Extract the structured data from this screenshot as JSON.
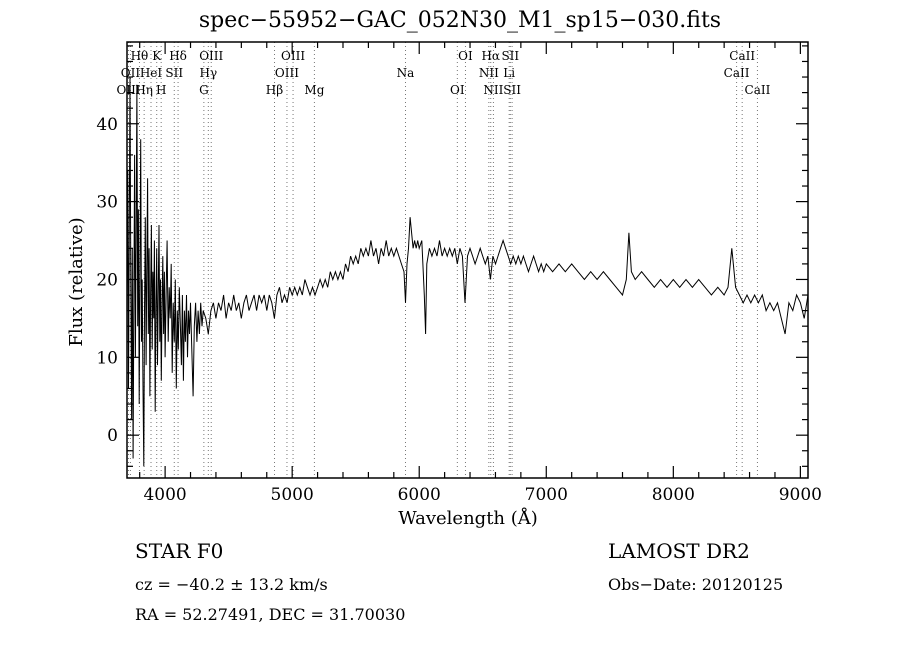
{
  "annotations": {
    "class_label": "STAR    F0",
    "survey": "LAMOST DR2",
    "cz": "cz = −40.2 ± 13.2 km/s",
    "obs_date": "Obs−Date: 20120125",
    "radec": "RA =  52.27491, DEC =  31.70030"
  },
  "chart_data": {
    "type": "line",
    "title": "spec−55952−GAC_052N30_M1_sp15−030.fits",
    "xlabel": "Wavelength (Å)",
    "ylabel": "Flux (relative)",
    "xlim": [
      3700,
      9060
    ],
    "ylim": [
      -5.5,
      50.5
    ],
    "xticks": [
      4000,
      5000,
      6000,
      7000,
      8000,
      9000
    ],
    "yticks": [
      0,
      10,
      20,
      30,
      40
    ],
    "x_minor_step": 200,
    "y_minor_step": 2,
    "line_color": "#000000",
    "marker_color": "#777777",
    "marker_row_y": [
      60,
      77,
      94
    ],
    "line_markers": [
      {
        "wavelength": 3798,
        "row": 1,
        "label": "Hθ"
      },
      {
        "wavelength": 3934,
        "row": 1,
        "label": "K"
      },
      {
        "wavelength": 4102,
        "row": 1,
        "label": "Hδ"
      },
      {
        "wavelength": 4363,
        "row": 1,
        "label": "OIII"
      },
      {
        "wavelength": 5007,
        "row": 1,
        "label": "OIII"
      },
      {
        "wavelength": 6364,
        "row": 1,
        "label": "OI"
      },
      {
        "wavelength": 6563,
        "row": 1,
        "label": "Hα"
      },
      {
        "wavelength": 6717,
        "row": 1,
        "label": "SII"
      },
      {
        "wavelength": 8542,
        "row": 1,
        "label": "CaII"
      },
      {
        "wavelength": 3727,
        "row": 2,
        "label": "OII"
      },
      {
        "wavelength": 3889,
        "row": 2,
        "label": "HeI"
      },
      {
        "wavelength": 4072,
        "row": 2,
        "label": "SII"
      },
      {
        "wavelength": 4340,
        "row": 2,
        "label": "Hγ"
      },
      {
        "wavelength": 4959,
        "row": 2,
        "label": "OIII"
      },
      {
        "wavelength": 5892,
        "row": 2,
        "label": "Na"
      },
      {
        "wavelength": 6548,
        "row": 2,
        "label": "NII"
      },
      {
        "wavelength": 6708,
        "row": 2,
        "label": "Li"
      },
      {
        "wavelength": 8498,
        "row": 2,
        "label": "CaII"
      },
      {
        "wavelength": 3712,
        "row": 3,
        "label": "OIII"
      },
      {
        "wavelength": 3835,
        "row": 3,
        "label": "Hη"
      },
      {
        "wavelength": 3969,
        "row": 3,
        "label": "H"
      },
      {
        "wavelength": 4305,
        "row": 3,
        "label": "G"
      },
      {
        "wavelength": 4861,
        "row": 3,
        "label": "Hβ"
      },
      {
        "wavelength": 5175,
        "row": 3,
        "label": "Mg"
      },
      {
        "wavelength": 6300,
        "row": 3,
        "label": "OI"
      },
      {
        "wavelength": 6584,
        "row": 3,
        "label": "NII"
      },
      {
        "wavelength": 6731,
        "row": 3,
        "label": "SII"
      },
      {
        "wavelength": 8662,
        "row": 3,
        "label": "CaII"
      }
    ],
    "spectrum": [
      [
        3700,
        18
      ],
      [
        3706,
        34
      ],
      [
        3712,
        6
      ],
      [
        3718,
        27
      ],
      [
        3724,
        46
      ],
      [
        3730,
        20
      ],
      [
        3736,
        2
      ],
      [
        3742,
        24
      ],
      [
        3748,
        -3
      ],
      [
        3754,
        18
      ],
      [
        3760,
        36
      ],
      [
        3766,
        10
      ],
      [
        3772,
        25
      ],
      [
        3778,
        45
      ],
      [
        3784,
        14
      ],
      [
        3790,
        29
      ],
      [
        3796,
        4
      ],
      [
        3802,
        22
      ],
      [
        3808,
        38
      ],
      [
        3814,
        12
      ],
      [
        3820,
        20
      ],
      [
        3826,
        6
      ],
      [
        3832,
        -4
      ],
      [
        3838,
        16
      ],
      [
        3844,
        28
      ],
      [
        3850,
        9
      ],
      [
        3856,
        21
      ],
      [
        3862,
        33
      ],
      [
        3868,
        13
      ],
      [
        3874,
        24
      ],
      [
        3880,
        5
      ],
      [
        3886,
        18
      ],
      [
        3892,
        27
      ],
      [
        3898,
        11
      ],
      [
        3904,
        21
      ],
      [
        3910,
        15
      ],
      [
        3916,
        25
      ],
      [
        3922,
        3
      ],
      [
        3928,
        17
      ],
      [
        3934,
        24
      ],
      [
        3940,
        9
      ],
      [
        3946,
        19
      ],
      [
        3952,
        27
      ],
      [
        3958,
        12
      ],
      [
        3964,
        20
      ],
      [
        3970,
        7
      ],
      [
        3976,
        17
      ],
      [
        3982,
        23
      ],
      [
        3988,
        13
      ],
      [
        3994,
        21
      ],
      [
        4000,
        10
      ],
      [
        4008,
        18
      ],
      [
        4016,
        25
      ],
      [
        4024,
        12
      ],
      [
        4032,
        19
      ],
      [
        4040,
        15
      ],
      [
        4048,
        22
      ],
      [
        4056,
        8
      ],
      [
        4064,
        17
      ],
      [
        4072,
        12
      ],
      [
        4080,
        20
      ],
      [
        4088,
        6
      ],
      [
        4096,
        16
      ],
      [
        4104,
        11
      ],
      [
        4112,
        19
      ],
      [
        4120,
        14
      ],
      [
        4128,
        9
      ],
      [
        4136,
        18
      ],
      [
        4144,
        7
      ],
      [
        4152,
        16
      ],
      [
        4160,
        12
      ],
      [
        4168,
        18
      ],
      [
        4176,
        10
      ],
      [
        4184,
        16
      ],
      [
        4192,
        13
      ],
      [
        4200,
        17
      ],
      [
        4210,
        11
      ],
      [
        4220,
        5
      ],
      [
        4230,
        14
      ],
      [
        4240,
        17
      ],
      [
        4250,
        12
      ],
      [
        4260,
        16
      ],
      [
        4270,
        13
      ],
      [
        4280,
        17
      ],
      [
        4290,
        14
      ],
      [
        4300,
        16
      ],
      [
        4320,
        15
      ],
      [
        4340,
        13
      ],
      [
        4360,
        16
      ],
      [
        4380,
        17
      ],
      [
        4400,
        15
      ],
      [
        4420,
        17
      ],
      [
        4440,
        16
      ],
      [
        4460,
        18
      ],
      [
        4480,
        15
      ],
      [
        4500,
        17
      ],
      [
        4520,
        16
      ],
      [
        4540,
        18
      ],
      [
        4560,
        16
      ],
      [
        4580,
        17
      ],
      [
        4600,
        15
      ],
      [
        4620,
        17
      ],
      [
        4640,
        18
      ],
      [
        4660,
        16
      ],
      [
        4680,
        17
      ],
      [
        4700,
        18
      ],
      [
        4720,
        16
      ],
      [
        4740,
        18
      ],
      [
        4760,
        17
      ],
      [
        4780,
        18
      ],
      [
        4800,
        16
      ],
      [
        4820,
        18
      ],
      [
        4840,
        17
      ],
      [
        4860,
        15
      ],
      [
        4880,
        18
      ],
      [
        4900,
        19
      ],
      [
        4920,
        17
      ],
      [
        4940,
        18
      ],
      [
        4960,
        17
      ],
      [
        4980,
        19
      ],
      [
        5000,
        18
      ],
      [
        5020,
        19
      ],
      [
        5040,
        18
      ],
      [
        5060,
        19
      ],
      [
        5080,
        18
      ],
      [
        5100,
        20
      ],
      [
        5120,
        19
      ],
      [
        5140,
        18
      ],
      [
        5160,
        19
      ],
      [
        5180,
        18
      ],
      [
        5200,
        19
      ],
      [
        5220,
        20
      ],
      [
        5240,
        19
      ],
      [
        5260,
        20
      ],
      [
        5280,
        19
      ],
      [
        5300,
        21
      ],
      [
        5320,
        20
      ],
      [
        5340,
        21
      ],
      [
        5360,
        20
      ],
      [
        5380,
        21
      ],
      [
        5400,
        20
      ],
      [
        5420,
        22
      ],
      [
        5440,
        21
      ],
      [
        5460,
        23
      ],
      [
        5480,
        22
      ],
      [
        5500,
        23
      ],
      [
        5520,
        22
      ],
      [
        5540,
        24
      ],
      [
        5560,
        23
      ],
      [
        5580,
        24
      ],
      [
        5600,
        23
      ],
      [
        5620,
        25
      ],
      [
        5640,
        23
      ],
      [
        5660,
        24
      ],
      [
        5680,
        22
      ],
      [
        5700,
        24
      ],
      [
        5720,
        23
      ],
      [
        5740,
        25
      ],
      [
        5760,
        23
      ],
      [
        5780,
        24
      ],
      [
        5800,
        23
      ],
      [
        5820,
        24
      ],
      [
        5840,
        23
      ],
      [
        5860,
        22
      ],
      [
        5880,
        21
      ],
      [
        5892,
        17
      ],
      [
        5904,
        22
      ],
      [
        5916,
        24
      ],
      [
        5928,
        28
      ],
      [
        5940,
        26
      ],
      [
        5952,
        24
      ],
      [
        5964,
        25
      ],
      [
        5976,
        24
      ],
      [
        5988,
        25
      ],
      [
        6000,
        24
      ],
      [
        6020,
        25
      ],
      [
        6040,
        18
      ],
      [
        6050,
        13
      ],
      [
        6060,
        22
      ],
      [
        6080,
        24
      ],
      [
        6100,
        23
      ],
      [
        6120,
        24
      ],
      [
        6140,
        23
      ],
      [
        6160,
        25
      ],
      [
        6180,
        23
      ],
      [
        6200,
        24
      ],
      [
        6220,
        23
      ],
      [
        6240,
        24
      ],
      [
        6260,
        23
      ],
      [
        6280,
        24
      ],
      [
        6300,
        22
      ],
      [
        6320,
        24
      ],
      [
        6340,
        23
      ],
      [
        6360,
        17
      ],
      [
        6380,
        23
      ],
      [
        6400,
        24
      ],
      [
        6420,
        23
      ],
      [
        6440,
        22
      ],
      [
        6460,
        23
      ],
      [
        6480,
        24
      ],
      [
        6500,
        23
      ],
      [
        6520,
        22
      ],
      [
        6540,
        23
      ],
      [
        6560,
        20
      ],
      [
        6580,
        23
      ],
      [
        6600,
        22
      ],
      [
        6620,
        23
      ],
      [
        6640,
        24
      ],
      [
        6660,
        25
      ],
      [
        6680,
        24
      ],
      [
        6700,
        23
      ],
      [
        6720,
        22
      ],
      [
        6740,
        23
      ],
      [
        6760,
        22
      ],
      [
        6780,
        23
      ],
      [
        6800,
        22
      ],
      [
        6820,
        23
      ],
      [
        6840,
        22
      ],
      [
        6860,
        21
      ],
      [
        6880,
        22
      ],
      [
        6900,
        23
      ],
      [
        6920,
        22
      ],
      [
        6940,
        21
      ],
      [
        6960,
        22
      ],
      [
        6980,
        21
      ],
      [
        7000,
        22
      ],
      [
        7050,
        21
      ],
      [
        7100,
        22
      ],
      [
        7150,
        21
      ],
      [
        7200,
        22
      ],
      [
        7250,
        21
      ],
      [
        7300,
        20
      ],
      [
        7350,
        21
      ],
      [
        7400,
        20
      ],
      [
        7450,
        21
      ],
      [
        7500,
        20
      ],
      [
        7550,
        19
      ],
      [
        7600,
        18
      ],
      [
        7630,
        20
      ],
      [
        7650,
        26
      ],
      [
        7670,
        21
      ],
      [
        7700,
        20
      ],
      [
        7750,
        21
      ],
      [
        7800,
        20
      ],
      [
        7850,
        19
      ],
      [
        7900,
        20
      ],
      [
        7950,
        19
      ],
      [
        8000,
        20
      ],
      [
        8050,
        19
      ],
      [
        8100,
        20
      ],
      [
        8150,
        19
      ],
      [
        8200,
        20
      ],
      [
        8250,
        19
      ],
      [
        8300,
        18
      ],
      [
        8350,
        19
      ],
      [
        8400,
        18
      ],
      [
        8430,
        19
      ],
      [
        8460,
        24
      ],
      [
        8490,
        19
      ],
      [
        8520,
        18
      ],
      [
        8550,
        17
      ],
      [
        8580,
        18
      ],
      [
        8610,
        17
      ],
      [
        8640,
        18
      ],
      [
        8670,
        17
      ],
      [
        8700,
        18
      ],
      [
        8730,
        16
      ],
      [
        8760,
        17
      ],
      [
        8790,
        16
      ],
      [
        8820,
        17
      ],
      [
        8850,
        15
      ],
      [
        8880,
        13
      ],
      [
        8910,
        17
      ],
      [
        8940,
        16
      ],
      [
        8970,
        18
      ],
      [
        9000,
        17
      ],
      [
        9030,
        15
      ],
      [
        9060,
        18
      ]
    ]
  }
}
